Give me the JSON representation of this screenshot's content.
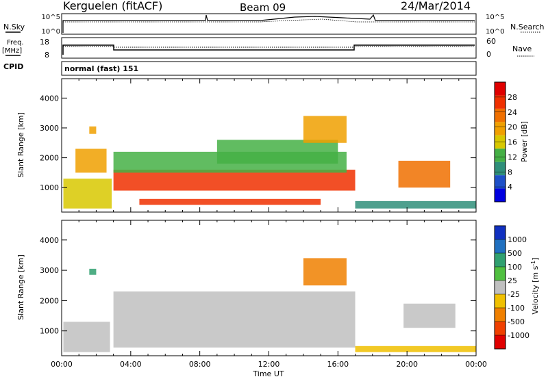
{
  "header": {
    "station": "Kerguelen (fitACF)",
    "beam": "Beam 09",
    "date": "24/Mar/2014"
  },
  "top_panels": {
    "nsky_label": "N.Sky",
    "nsky_ticks": [
      "10^5",
      "10^0"
    ],
    "nsearch_label": "N.Search",
    "nsearch_ticks": [
      "10^5",
      "10^0"
    ],
    "freq_label_line1": "Freq.",
    "freq_label_line2": "[MHz]",
    "freq_ticks": [
      "18",
      "8"
    ],
    "nave_label": "Nave",
    "nave_ticks": [
      "60",
      "0"
    ],
    "cpid_label": "CPID",
    "cpid_value": "normal (fast) 151"
  },
  "colors": {
    "power": [
      "#0000e0",
      "#1e50c8",
      "#2f8f7a",
      "#45b045",
      "#d8c800",
      "#f0a000",
      "#f07000",
      "#f03000",
      "#e00000"
    ],
    "velocity": [
      "#1030c0",
      "#2070c0",
      "#30a070",
      "#50c040",
      "#c0c0c0",
      "#f0c000",
      "#f08000",
      "#f04000",
      "#e00000"
    ],
    "ground_scatter": "#c0c0c0"
  },
  "chart_data": [
    {
      "type": "heatmap",
      "name_text": "",
      "ylabel": "Slant Range [km]",
      "xlabel": "Time UT",
      "x_ticks": [
        "00:00",
        "04:00",
        "08:00",
        "12:00",
        "16:00",
        "20:00",
        "00:00"
      ],
      "xlim_hours": [
        0,
        24
      ],
      "y_ticks": [
        "1000",
        "2000",
        "3000",
        "4000"
      ],
      "ylim": [
        180,
        4650
      ],
      "colorbar_label": "Power [dB]",
      "colorbar_ticks": [
        "4",
        "8",
        "12",
        "16",
        "20",
        "24",
        "28"
      ],
      "colorbar_range": [
        0,
        32
      ],
      "regions": [
        {
          "t0": 0.1,
          "t1": 2.9,
          "r0": 300,
          "r1": 1300,
          "level": 16
        },
        {
          "t0": 0.8,
          "t1": 2.6,
          "r0": 1500,
          "r1": 2300,
          "level": 18
        },
        {
          "t0": 1.6,
          "t1": 2.0,
          "r0": 2800,
          "r1": 3050,
          "level": 20
        },
        {
          "t0": 3.0,
          "t1": 17.0,
          "r0": 900,
          "r1": 1600,
          "level": 26
        },
        {
          "t0": 3.0,
          "t1": 16.5,
          "r0": 1500,
          "r1": 2200,
          "level": 14
        },
        {
          "t0": 4.5,
          "t1": 15.0,
          "r0": 420,
          "r1": 620,
          "level": 28
        },
        {
          "t0": 9.0,
          "t1": 16.0,
          "r0": 1800,
          "r1": 2600,
          "level": 12
        },
        {
          "t0": 14.0,
          "t1": 16.5,
          "r0": 2500,
          "r1": 3400,
          "level": 18
        },
        {
          "t0": 19.5,
          "t1": 22.5,
          "r0": 1000,
          "r1": 1900,
          "level": 22
        },
        {
          "t0": 17.0,
          "t1": 24.0,
          "r0": 300,
          "r1": 550,
          "level": 8
        }
      ]
    },
    {
      "type": "heatmap",
      "name_text": "",
      "ylabel": "Slant Range [km]",
      "xlabel": "Time UT",
      "x_ticks": [
        "00:00",
        "04:00",
        "08:00",
        "12:00",
        "16:00",
        "20:00",
        "00:00"
      ],
      "xlim_hours": [
        0,
        24
      ],
      "y_ticks": [
        "1000",
        "2000",
        "3000",
        "4000"
      ],
      "ylim": [
        180,
        4650
      ],
      "colorbar_label": "Velocity [m s^-1]",
      "colorbar_ticks": [
        "1000",
        "500",
        "100",
        "25",
        "-25",
        "-100",
        "-500",
        "-1000"
      ],
      "regions": [
        {
          "t0": 3.0,
          "t1": 17.0,
          "r0": 450,
          "r1": 2300,
          "kind": "ground"
        },
        {
          "t0": 0.1,
          "t1": 2.8,
          "r0": 300,
          "r1": 1300,
          "kind": "ground"
        },
        {
          "t0": 19.8,
          "t1": 22.8,
          "r0": 1100,
          "r1": 1900,
          "kind": "ground"
        },
        {
          "t0": 1.6,
          "t1": 2.0,
          "r0": 2850,
          "r1": 3050,
          "velocity": 100
        },
        {
          "t0": 14.0,
          "t1": 16.5,
          "r0": 2500,
          "r1": 3400,
          "velocity": -300
        },
        {
          "t0": 17.0,
          "t1": 24.0,
          "r0": 300,
          "r1": 500,
          "velocity": -80
        }
      ]
    }
  ]
}
